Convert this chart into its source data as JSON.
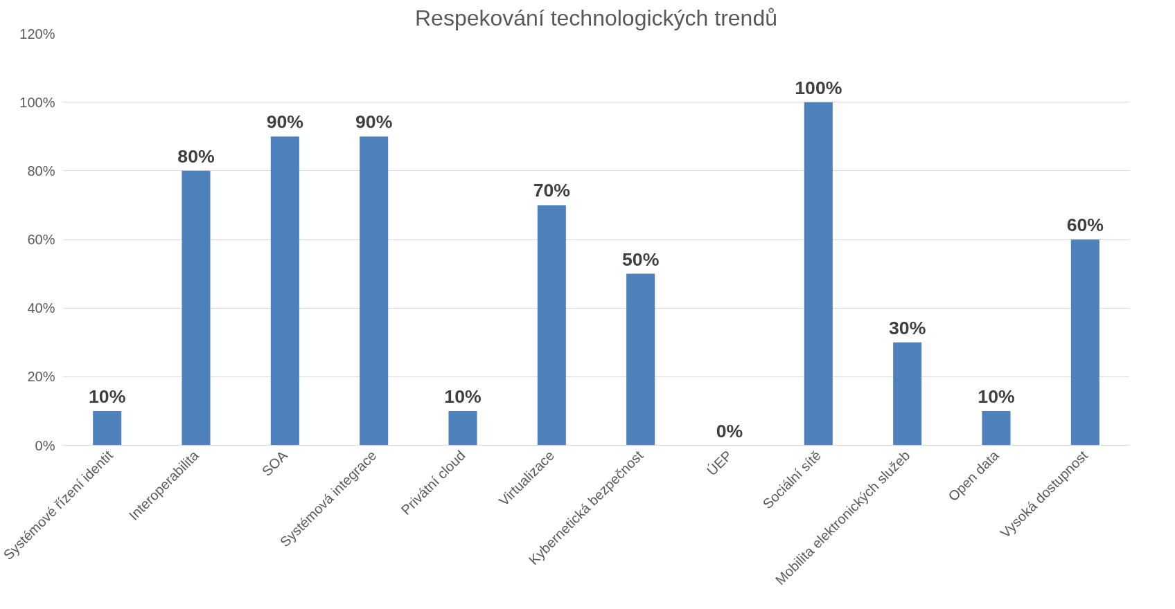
{
  "chart_data": {
    "type": "bar",
    "title": "Respekování technologických trendů",
    "categories": [
      "Systémové řízení identit",
      "Interoperabilita",
      "SOA",
      "Systémová integrace",
      "Privátní cloud",
      "Virtualizace",
      "Kybernetická bezpečnost",
      "ÚEP",
      "Sociální sítě",
      "Mobilita elektronických služeb",
      "Open data",
      "Vysoká dostupnost"
    ],
    "values": [
      10,
      80,
      90,
      90,
      10,
      70,
      50,
      0,
      100,
      30,
      10,
      60
    ],
    "value_labels": [
      "10%",
      "80%",
      "90%",
      "90%",
      "10%",
      "70%",
      "50%",
      "0%",
      "100%",
      "30%",
      "10%",
      "60%"
    ],
    "color": "#4f81bd",
    "ylim": [
      0,
      120
    ],
    "yticks": [
      {
        "value": 0,
        "label": "0%"
      },
      {
        "value": 20,
        "label": "20%"
      },
      {
        "value": 40,
        "label": "40%"
      },
      {
        "value": 60,
        "label": "60%"
      },
      {
        "value": 80,
        "label": "80%"
      },
      {
        "value": 100,
        "label": "100%"
      },
      {
        "value": 120,
        "label": "120%"
      }
    ],
    "grid": "y"
  }
}
